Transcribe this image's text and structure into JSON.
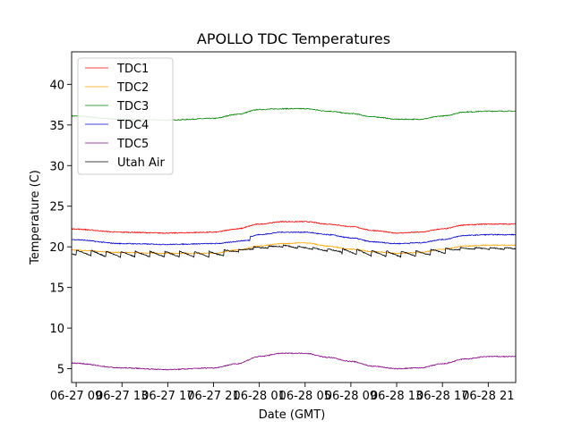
{
  "chart_data": {
    "type": "line",
    "title": "APOLLO TDC Temperatures",
    "xlabel": "Date (GMT)",
    "ylabel": "Temperature (C)",
    "ylim": [
      3.3,
      44.0
    ],
    "xlim": [
      -0.1,
      9.6
    ],
    "yticks": [
      5,
      10,
      15,
      20,
      25,
      30,
      35,
      40
    ],
    "xticks": [
      {
        "x": 0,
        "label": "06-27 09"
      },
      {
        "x": 1,
        "label": "06-27 13"
      },
      {
        "x": 2,
        "label": "06-27 17"
      },
      {
        "x": 3,
        "label": "06-27 21"
      },
      {
        "x": 4,
        "label": "06-28 01"
      },
      {
        "x": 5,
        "label": "06-28 05"
      },
      {
        "x": 6,
        "label": "06-28 09"
      },
      {
        "x": 7,
        "label": "06-28 13"
      },
      {
        "x": 8,
        "label": "06-28 17"
      },
      {
        "x": 9,
        "label": "06-28 21"
      }
    ],
    "grid": false,
    "legend_position": "top-left",
    "series": [
      {
        "name": "TDC1",
        "color": "#ff0000",
        "x": [
          -0.1,
          1,
          2,
          3,
          3.5,
          4,
          4.5,
          5,
          5.5,
          6,
          6.5,
          7,
          7.5,
          8,
          8.5,
          9,
          9.6
        ],
        "y": [
          22.2,
          21.8,
          21.7,
          21.8,
          22.2,
          22.8,
          23.1,
          23.1,
          22.8,
          22.5,
          22.0,
          21.7,
          21.8,
          22.2,
          22.7,
          22.8,
          22.8
        ]
      },
      {
        "name": "TDC2",
        "color": "#ffa500",
        "x": [
          -0.1,
          1,
          2,
          3,
          3.5,
          4,
          4.5,
          5,
          5.5,
          6,
          6.5,
          7,
          7.5,
          8,
          8.5,
          9,
          9.6
        ],
        "y": [
          19.6,
          19.3,
          19.2,
          19.2,
          19.6,
          20.1,
          20.4,
          20.5,
          20.1,
          19.7,
          19.4,
          19.2,
          19.3,
          19.7,
          20.1,
          20.2,
          20.2
        ]
      },
      {
        "name": "TDC3",
        "color": "#008000",
        "x": [
          -0.1,
          1,
          2,
          3,
          3.5,
          4,
          4.5,
          5,
          5.5,
          6,
          6.5,
          7,
          7.5,
          8,
          8.5,
          9,
          9.6
        ],
        "y": [
          36.1,
          35.7,
          35.6,
          35.8,
          36.3,
          36.9,
          37.0,
          37.0,
          36.7,
          36.4,
          36.0,
          35.7,
          35.7,
          36.1,
          36.6,
          36.7,
          36.7
        ]
      },
      {
        "name": "TDC4",
        "color": "#0000cc",
        "x": [
          -0.1,
          1,
          2,
          3,
          3.8,
          3.8,
          4,
          4.5,
          5,
          5.5,
          6,
          6.5,
          7,
          7.5,
          8,
          8.5,
          9,
          9.6
        ],
        "y": [
          20.9,
          20.4,
          20.3,
          20.4,
          20.8,
          21.3,
          21.5,
          21.8,
          21.8,
          21.5,
          21.1,
          20.6,
          20.4,
          20.5,
          20.9,
          21.4,
          21.5,
          21.5
        ]
      },
      {
        "name": "TDC5",
        "color": "#800080",
        "x": [
          -0.1,
          1,
          2,
          3,
          3.5,
          4,
          4.5,
          5,
          5.5,
          6,
          6.5,
          7,
          7.5,
          8,
          8.5,
          9,
          9.6
        ],
        "y": [
          5.7,
          5.1,
          4.9,
          5.1,
          5.6,
          6.5,
          6.9,
          6.9,
          6.4,
          5.9,
          5.3,
          5.0,
          5.1,
          5.6,
          6.2,
          6.5,
          6.5
        ]
      },
      {
        "name": "Utah Air",
        "color": "#000000",
        "x": [
          -0.1,
          1,
          2,
          3,
          3.5,
          4,
          4.5,
          5,
          5.5,
          6,
          6.5,
          7,
          7.5,
          8,
          8.5,
          9,
          9.6
        ],
        "y": [
          19.3,
          19.1,
          19.1,
          19.1,
          19.5,
          19.9,
          20.1,
          19.9,
          19.6,
          19.4,
          19.2,
          19.1,
          19.2,
          19.5,
          19.8,
          19.8,
          19.8
        ],
        "sawtooth": true
      }
    ]
  }
}
